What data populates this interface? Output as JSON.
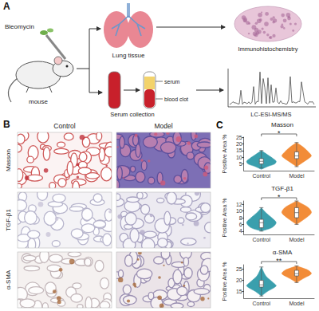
{
  "panels": {
    "A": {
      "letter": "A",
      "labels": {
        "drug": "Bleomycin",
        "animal": "mouse",
        "tissue": "Lung tissue",
        "ihc": "Immunohistochemistry",
        "serum_tube": "serum",
        "clot": "blood clot",
        "serum": "Serum collection",
        "ms": "LC-ESI-MS/MS"
      }
    },
    "B": {
      "letter": "B",
      "columns": [
        "Control",
        "Model"
      ],
      "rows": [
        "Masson",
        "TGF-β1",
        "α-SMA"
      ]
    },
    "C": {
      "letter": "C"
    }
  },
  "chart_data": [
    {
      "type": "violin",
      "title": "Masson",
      "ylabel": "Positive Area %",
      "categories": [
        "Control",
        "Model"
      ],
      "colors": [
        "#3a9fad",
        "#f28c38"
      ],
      "box": [
        [
          2,
          5,
          7,
          9,
          15
        ],
        [
          3,
          9,
          11,
          14,
          21
        ]
      ],
      "density": [
        [
          [
            1,
            0
          ],
          [
            3,
            0.4
          ],
          [
            5,
            0.9
          ],
          [
            7,
            1
          ],
          [
            9,
            0.8
          ],
          [
            12,
            0.4
          ],
          [
            15,
            0
          ]
        ],
        [
          [
            3,
            0
          ],
          [
            6,
            0.4
          ],
          [
            9,
            0.8
          ],
          [
            11,
            1
          ],
          [
            14,
            0.8
          ],
          [
            18,
            0.4
          ],
          [
            21,
            0
          ]
        ]
      ],
      "ylim": [
        0,
        25
      ],
      "yticks": [
        5,
        10,
        15,
        20,
        25
      ],
      "grid": false,
      "annotation": "*"
    },
    {
      "type": "violin",
      "title": "TGF-β1",
      "ylabel": "Positive Area %",
      "categories": [
        "Control",
        "Model"
      ],
      "colors": [
        "#3a9fad",
        "#f28c38"
      ],
      "box": [
        [
          4,
          5,
          6.5,
          7.5,
          11
        ],
        [
          6,
          8,
          9.5,
          11,
          13
        ]
      ],
      "density": [
        [
          [
            4,
            0
          ],
          [
            5,
            0.7
          ],
          [
            6.5,
            1
          ],
          [
            8,
            0.7
          ],
          [
            9.5,
            0.3
          ],
          [
            11,
            0
          ]
        ],
        [
          [
            6,
            0
          ],
          [
            7.5,
            0.5
          ],
          [
            9.5,
            1
          ],
          [
            11,
            0.8
          ],
          [
            12.3,
            0.3
          ],
          [
            13,
            0
          ]
        ]
      ],
      "ylim": [
        3,
        13
      ],
      "yticks": [
        4,
        6,
        8,
        10,
        12
      ],
      "grid": false,
      "annotation": "*"
    },
    {
      "type": "violin",
      "title": "α-SMA",
      "ylabel": "Positive Area %",
      "categories": [
        "Control",
        "Model"
      ],
      "colors": [
        "#3a9fad",
        "#f28c38"
      ],
      "box": [
        [
          13,
          17,
          18,
          20,
          26
        ],
        [
          19,
          22,
          23,
          24.5,
          26.5
        ]
      ],
      "density": [
        [
          [
            13,
            0
          ],
          [
            15,
            0.4
          ],
          [
            17.5,
            1
          ],
          [
            19,
            0.8
          ],
          [
            22,
            0.3
          ],
          [
            26,
            0
          ]
        ],
        [
          [
            19,
            0
          ],
          [
            21,
            0.5
          ],
          [
            23,
            1
          ],
          [
            24.5,
            0.8
          ],
          [
            25.8,
            0.3
          ],
          [
            26.5,
            0
          ]
        ]
      ],
      "ylim": [
        12,
        27
      ],
      "yticks": [
        15,
        20,
        25
      ],
      "grid": false,
      "annotation": "**"
    }
  ]
}
